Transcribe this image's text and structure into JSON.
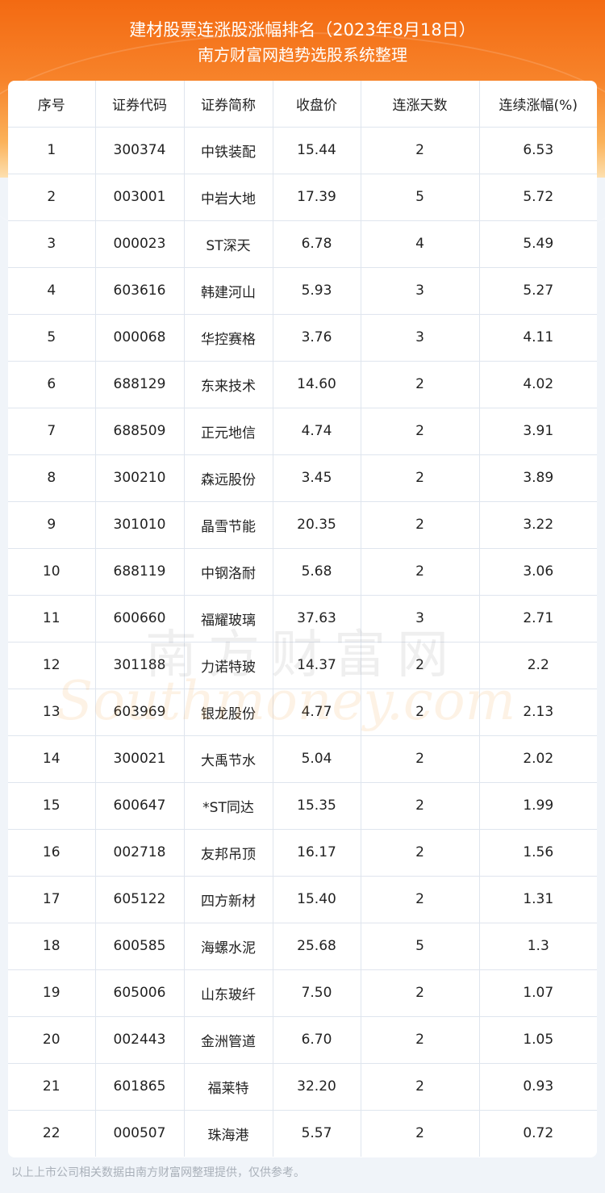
{
  "header": {
    "title": "建材股票连涨股涨幅排名（2023年8月18日）",
    "subtitle": "南方财富网趋势选股系统整理"
  },
  "table": {
    "columns": [
      "序号",
      "证券代码",
      "证券简称",
      "收盘价",
      "连涨天数",
      "连续涨幅(%)"
    ],
    "rows": [
      [
        "1",
        "300374",
        "中铁装配",
        "15.44",
        "2",
        "6.53"
      ],
      [
        "2",
        "003001",
        "中岩大地",
        "17.39",
        "5",
        "5.72"
      ],
      [
        "3",
        "000023",
        "ST深天",
        "6.78",
        "4",
        "5.49"
      ],
      [
        "4",
        "603616",
        "韩建河山",
        "5.93",
        "3",
        "5.27"
      ],
      [
        "5",
        "000068",
        "华控赛格",
        "3.76",
        "3",
        "4.11"
      ],
      [
        "6",
        "688129",
        "东来技术",
        "14.60",
        "2",
        "4.02"
      ],
      [
        "7",
        "688509",
        "正元地信",
        "4.74",
        "2",
        "3.91"
      ],
      [
        "8",
        "300210",
        "森远股份",
        "3.45",
        "2",
        "3.89"
      ],
      [
        "9",
        "301010",
        "晶雪节能",
        "20.35",
        "2",
        "3.22"
      ],
      [
        "10",
        "688119",
        "中钢洛耐",
        "5.68",
        "2",
        "3.06"
      ],
      [
        "11",
        "600660",
        "福耀玻璃",
        "37.63",
        "3",
        "2.71"
      ],
      [
        "12",
        "301188",
        "力诺特玻",
        "14.37",
        "2",
        "2.2"
      ],
      [
        "13",
        "603969",
        "银龙股份",
        "4.77",
        "2",
        "2.13"
      ],
      [
        "14",
        "300021",
        "大禹节水",
        "5.04",
        "2",
        "2.02"
      ],
      [
        "15",
        "600647",
        "*ST同达",
        "15.35",
        "2",
        "1.99"
      ],
      [
        "16",
        "002718",
        "友邦吊顶",
        "16.17",
        "2",
        "1.56"
      ],
      [
        "17",
        "605122",
        "四方新材",
        "15.40",
        "2",
        "1.31"
      ],
      [
        "18",
        "600585",
        "海螺水泥",
        "25.68",
        "5",
        "1.3"
      ],
      [
        "19",
        "605006",
        "山东玻纤",
        "7.50",
        "2",
        "1.07"
      ],
      [
        "20",
        "002443",
        "金洲管道",
        "6.70",
        "2",
        "1.05"
      ],
      [
        "21",
        "601865",
        "福莱特",
        "32.20",
        "2",
        "0.93"
      ],
      [
        "22",
        "000507",
        "珠海港",
        "5.57",
        "2",
        "0.72"
      ]
    ]
  },
  "watermark": {
    "cn": "南方财富网",
    "en": "Southmoney.com"
  },
  "footer": "以上上市公司相关数据由南方财富网整理提供，仅供参考。"
}
